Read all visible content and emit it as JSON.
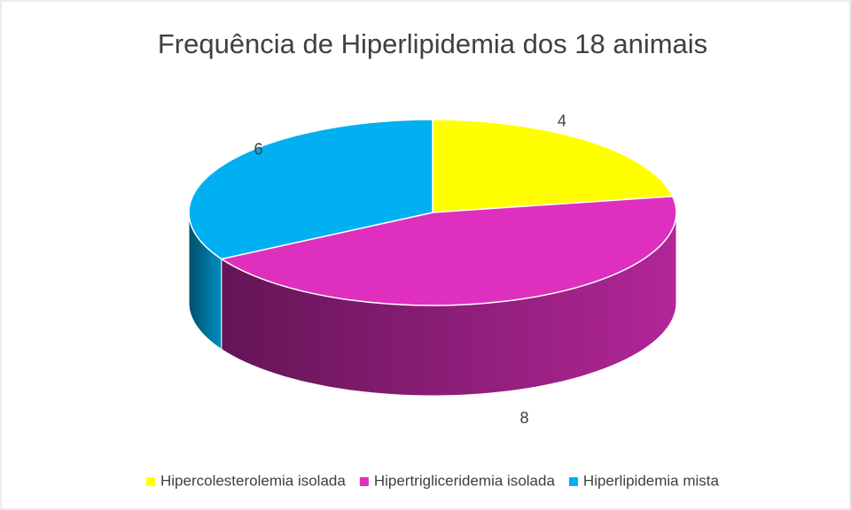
{
  "chart_data": {
    "type": "pie",
    "title": "Frequência de Hiperlipidemia dos 18 animais",
    "categories": [
      "Hipercolesterolemia isolada",
      "Hipertrigliceridemia isolada",
      "Hiperlipidemia mista"
    ],
    "values": [
      4,
      8,
      6
    ],
    "colors": [
      "#ffff00",
      "#df2fbe",
      "#00b0f0"
    ]
  }
}
